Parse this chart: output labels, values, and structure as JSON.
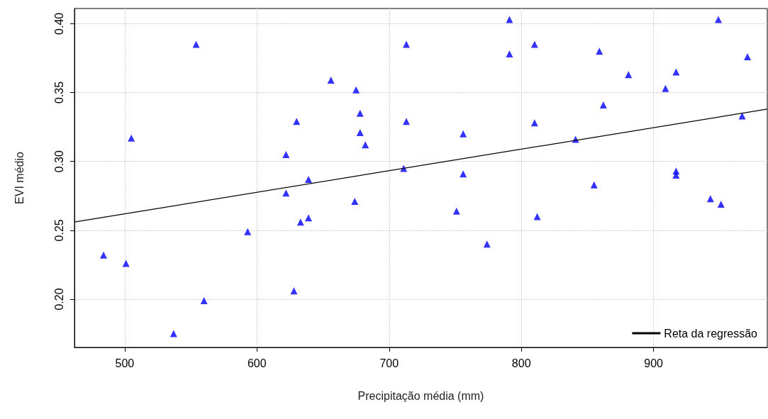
{
  "chart_data": {
    "type": "scatter",
    "xlabel": "Precipitação média (mm)",
    "ylabel": "EVI médio",
    "xlim": [
      462,
      986
    ],
    "xticks": [
      500,
      600,
      700,
      800,
      900
    ],
    "ylim": [
      0.165,
      0.411
    ],
    "yticks": [
      {
        "value": 0.2,
        "label": "0.20"
      },
      0.25,
      {
        "value": 0.3,
        "label": "0.30"
      },
      0.35,
      {
        "value": 0.4,
        "label": "0.40"
      }
    ],
    "grid": true,
    "legend": "bottom right",
    "marker": "triangle",
    "series": [
      {
        "color": "#0000ff",
        "x": [
          484,
          501,
          505,
          537,
          554,
          560,
          593,
          622,
          622,
          630,
          628,
          633,
          639,
          639,
          656,
          675,
          674,
          678,
          678,
          682,
          711,
          713,
          713,
          751,
          756,
          756,
          774,
          791,
          791,
          810,
          810,
          812,
          841,
          859,
          855,
          862,
          881,
          909,
          917,
          917,
          917,
          943,
          951,
          949,
          971,
          967
        ],
        "values": [
          0.232,
          0.226,
          0.317,
          0.175,
          0.385,
          0.199,
          0.249,
          0.305,
          0.277,
          0.329,
          0.206,
          0.256,
          0.259,
          0.287,
          0.359,
          0.352,
          0.271,
          0.335,
          0.321,
          0.312,
          0.295,
          0.385,
          0.329,
          0.264,
          0.32,
          0.291,
          0.24,
          0.403,
          0.378,
          0.385,
          0.328,
          0.26,
          0.316,
          0.38,
          0.283,
          0.341,
          0.363,
          0.353,
          0.365,
          0.293,
          0.29,
          0.273,
          0.269,
          0.403,
          0.376,
          0.333
        ]
      },
      {
        "type": "line",
        "name": "Reta da regressão",
        "color": "#000000",
        "marker": "none",
        "x": [
          462,
          986
        ],
        "values": [
          0.256,
          0.338
        ]
      }
    ]
  }
}
